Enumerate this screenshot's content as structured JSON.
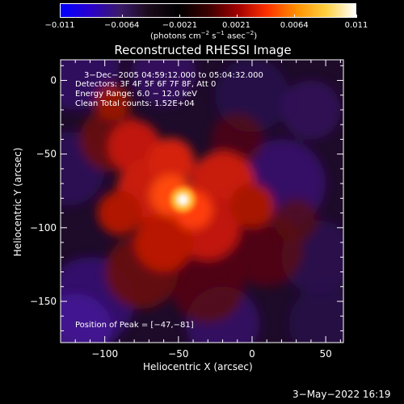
{
  "colorbar": {
    "ticks": [
      "−0.011",
      "−0.0064",
      "−0.0021",
      "0.0021",
      "0.0064",
      "0.011"
    ],
    "units_prefix": "(photons cm",
    "units_exp1": "−2",
    "units_mid": " s",
    "units_exp2": "−1",
    "units_mid2": " asec",
    "units_exp3": "−2",
    "units_suffix": ")",
    "colors": [
      "#0000ff",
      "#2a00cc",
      "#3a1a6a",
      "#1a0a1a",
      "#000000",
      "#3a0000",
      "#a00000",
      "#ff3000",
      "#ff9000",
      "#ffd040",
      "#ffffff"
    ]
  },
  "annotations": {
    "time_range": "3−Dec−2005 04:59:12.000 to 05:04:32.000",
    "detectors": "Detectors: 3F 4F 5F 6F 7F 8F, Att 0",
    "energy": "Energy Range: 6.0 − 12.0 keV",
    "clean": "Clean     Total counts: 1.52E+04",
    "peak": "Position of Peak = [−47,−81]"
  },
  "footer": {
    "date": "3−May−2022 16:19"
  },
  "chart_data": {
    "type": "heatmap",
    "title": "Reconstructed RHESSI Image",
    "xlabel": "Heliocentric X (arcsec)",
    "ylabel": "Heliocentric Y (arcsec)",
    "xlim": [
      -130,
      62
    ],
    "ylim": [
      -178,
      14
    ],
    "x_ticks": [
      -100,
      -50,
      0,
      50
    ],
    "x_tick_labels": [
      "−100",
      "−50",
      "0",
      "50"
    ],
    "y_ticks": [
      0,
      -50,
      -100,
      -150
    ],
    "y_tick_labels": [
      "0",
      "−50",
      "−100",
      "−150"
    ],
    "colorbar_range": [
      -0.011,
      0.011
    ],
    "peak_position": [
      -47,
      -81
    ],
    "peak_value": 0.011
  }
}
